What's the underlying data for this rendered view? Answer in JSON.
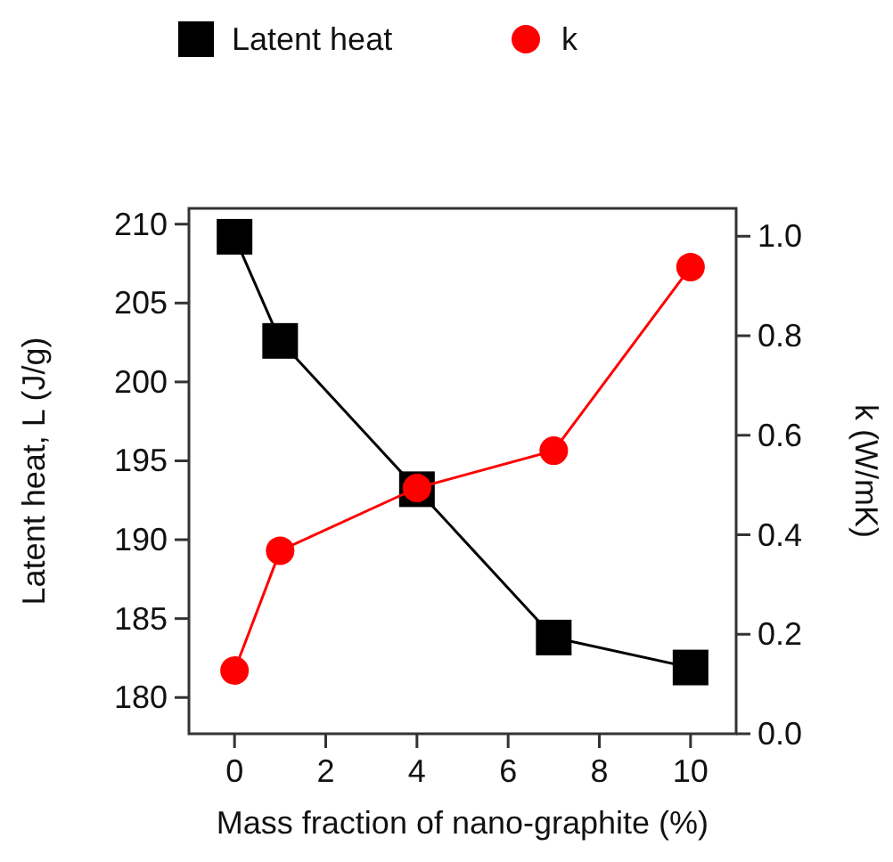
{
  "chart_data": {
    "type": "line",
    "xlabel": "Mass fraction of nano-graphite (%)",
    "ylabel": "Latent heat, L (J/g)",
    "y2label": "k (W/mK)",
    "x": [
      0,
      1,
      4,
      7,
      10
    ],
    "xlim": [
      -1,
      11
    ],
    "xticks": [
      0,
      2,
      4,
      6,
      8,
      10
    ],
    "ylim": [
      177.7,
      211
    ],
    "yticks": [
      180,
      185,
      190,
      195,
      200,
      205,
      210
    ],
    "y2lim": [
      0,
      1.056
    ],
    "y2ticks": [
      {
        "value": 0,
        "label": "0.0"
      },
      0.2,
      0.4,
      0.6,
      0.8,
      {
        "value": 1,
        "label": "1.0"
      }
    ],
    "legend": "top",
    "line_style": "solid",
    "series": [
      {
        "name": "Latent heat",
        "color": "#000000",
        "marker": "square",
        "values": [
          209.2,
          202.6,
          193.2,
          183.8,
          181.9
        ]
      },
      {
        "name": "k",
        "color": "#ff0000",
        "marker": "circle",
        "axis": "y2",
        "values": [
          0.127,
          0.368,
          0.494,
          0.569,
          0.938
        ]
      }
    ]
  }
}
